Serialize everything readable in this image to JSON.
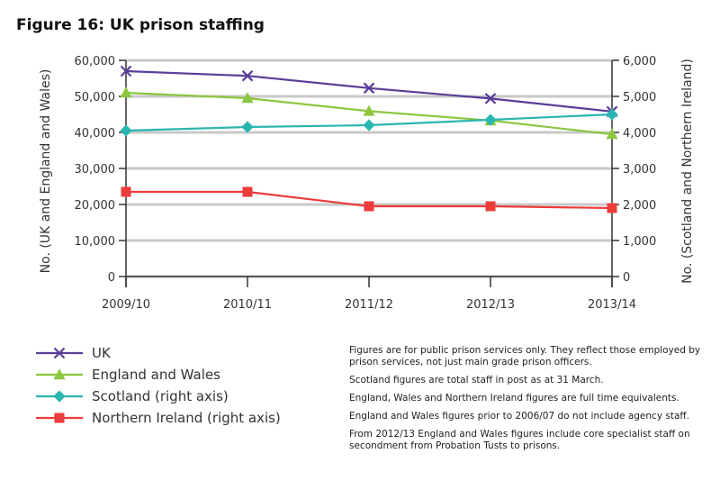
{
  "title": "Figure 16: UK prison staffing",
  "chart_data": {
    "type": "line",
    "title": "Figure 16: UK prison staffing",
    "categories": [
      "2009/10",
      "2010/11",
      "2011/12",
      "2012/13",
      "2013/14"
    ],
    "y_left": {
      "label": "No. (UK and England and Wales)",
      "range": [
        0,
        60000
      ],
      "ticks": [
        "0",
        "10,000",
        "20,000",
        "30,000",
        "40,000",
        "50,000",
        "60,000"
      ]
    },
    "y_right": {
      "label": "No. (Scotland and Northern Ireland)",
      "range": [
        0,
        6000
      ],
      "ticks": [
        "0",
        "1,000",
        "2,000",
        "3,000",
        "4,000",
        "5,000",
        "6,000"
      ]
    },
    "grid": true,
    "legend_position": "bottom-left",
    "series": [
      {
        "name": "UK",
        "axis": "left",
        "color": "#5a3d99",
        "marker": "x",
        "values": [
          57000,
          55700,
          52300,
          49400,
          45800
        ]
      },
      {
        "name": "England and Wales",
        "axis": "left",
        "color": "#8cc63f",
        "marker": "triangle",
        "values": [
          51000,
          49500,
          45900,
          43300,
          39500
        ]
      },
      {
        "name": "Scotland (right axis)",
        "axis": "right",
        "color": "#2ab6b0",
        "marker": "diamond",
        "values": [
          4050,
          4150,
          4200,
          4350,
          4500
        ]
      },
      {
        "name": "Northern Ireland (right axis)",
        "axis": "right",
        "color": "#ec3b3b",
        "marker": "square",
        "values": [
          2350,
          2350,
          1950,
          1950,
          1900
        ]
      }
    ]
  },
  "notes": [
    "Figures are for public prison services only. They reflect those employed by prison services, not just main grade prison officers.",
    "Scotland figures are total staff in post as at 31 March.",
    "England, Wales and Northern Ireland figures are full time equivalents.",
    "England and Wales figures prior to 2006/07 do not include agency staff.",
    "From 2012/13 England and Wales figures include core specialist staff on secondment from Probation Tusts to prisons."
  ]
}
